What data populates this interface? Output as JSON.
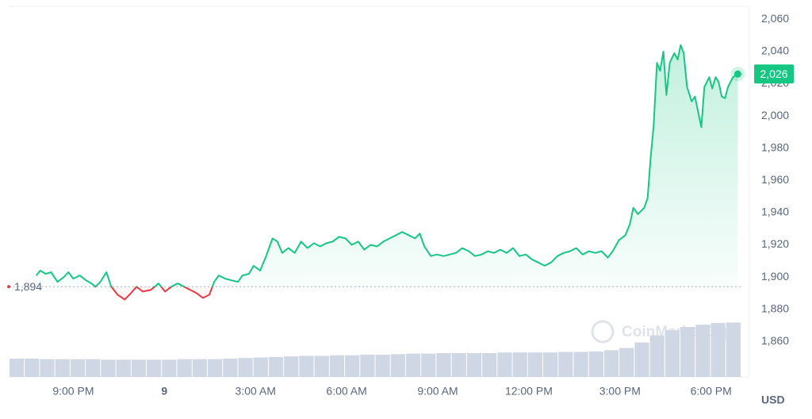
{
  "chart_data": {
    "type": "line",
    "currency": "USD",
    "watermark": "CoinMarketCap",
    "up_color": "#16c784",
    "down_color": "#ea3943",
    "baseline": {
      "value": 1894,
      "label": "1,894"
    },
    "current_price": {
      "value": 2026,
      "label": "2,026"
    },
    "xlim": [
      -2.1,
      22
    ],
    "xticks": [
      {
        "value": 0,
        "label": "9:00 PM"
      },
      {
        "value": 3,
        "label": "9"
      },
      {
        "value": 6,
        "label": "3:00 AM"
      },
      {
        "value": 9,
        "label": "6:00 AM"
      },
      {
        "value": 12,
        "label": "9:00 AM"
      },
      {
        "value": 15,
        "label": "12:00 PM"
      },
      {
        "value": 18,
        "label": "3:00 PM"
      },
      {
        "value": 21,
        "label": "6:00 PM"
      }
    ],
    "ylim": [
      1838,
      2068
    ],
    "yticks": [
      {
        "value": 1860,
        "label": "1,860"
      },
      {
        "value": 1880,
        "label": "1,880"
      },
      {
        "value": 1900,
        "label": "1,900"
      },
      {
        "value": 1920,
        "label": "1,920"
      },
      {
        "value": 1940,
        "label": "1,940"
      },
      {
        "value": 1960,
        "label": "1,960"
      },
      {
        "value": 1980,
        "label": "1,980"
      },
      {
        "value": 2000,
        "label": "2,000"
      },
      {
        "value": 2020,
        "label": "2,020"
      },
      {
        "value": 2040,
        "label": "2,040"
      },
      {
        "value": 2060,
        "label": "2,060"
      }
    ],
    "grid": false,
    "x": [
      -1.22,
      -1.09,
      -0.91,
      -0.73,
      -0.52,
      -0.31,
      -0.16,
      0,
      0.21,
      0.42,
      0.6,
      0.73,
      0.89,
      1.09,
      1.25,
      1.46,
      1.69,
      1.9,
      2.08,
      2.29,
      2.55,
      2.81,
      3.02,
      3.23,
      3.44,
      3.65,
      3.85,
      4.06,
      4.27,
      4.48,
      4.64,
      4.79,
      5.0,
      5.21,
      5.42,
      5.57,
      5.78,
      5.94,
      6.15,
      6.35,
      6.56,
      6.72,
      6.88,
      7.08,
      7.29,
      7.5,
      7.71,
      7.92,
      8.13,
      8.33,
      8.54,
      8.75,
      8.96,
      9.17,
      9.38,
      9.58,
      9.79,
      10.0,
      10.21,
      10.42,
      10.63,
      10.83,
      11.04,
      11.25,
      11.41,
      11.56,
      11.77,
      11.98,
      12.19,
      12.4,
      12.6,
      12.81,
      13.02,
      13.23,
      13.44,
      13.65,
      13.85,
      14.06,
      14.27,
      14.48,
      14.69,
      14.9,
      15.1,
      15.31,
      15.52,
      15.73,
      15.94,
      16.15,
      16.35,
      16.56,
      16.77,
      16.98,
      17.19,
      17.4,
      17.6,
      17.76,
      17.97,
      18.18,
      18.33,
      18.44,
      18.59,
      18.8,
      18.91,
      19.01,
      19.11,
      19.22,
      19.32,
      19.43,
      19.53,
      19.64,
      19.79,
      19.9,
      20.0,
      20.1,
      20.21,
      20.36,
      20.47,
      20.57,
      20.68,
      20.78,
      20.94,
      21.04,
      21.15,
      21.25,
      21.35,
      21.46,
      21.56,
      21.72,
      21.88
    ],
    "series": [
      {
        "name": "Price",
        "values": [
          1901,
          1904,
          1902,
          1903,
          1897,
          1900,
          1903,
          1899,
          1901,
          1898,
          1896,
          1894,
          1897,
          1903,
          1894,
          1889,
          1886,
          1890,
          1894,
          1891,
          1892,
          1896,
          1891,
          1894,
          1896,
          1894,
          1892,
          1890,
          1887,
          1889,
          1897,
          1901,
          1899,
          1898,
          1897,
          1901,
          1902,
          1907,
          1904,
          1913,
          1924,
          1922,
          1915,
          1918,
          1915,
          1922,
          1918,
          1921,
          1919,
          1921,
          1922,
          1925,
          1924,
          1920,
          1922,
          1917,
          1920,
          1919,
          1922,
          1924,
          1926,
          1928,
          1926,
          1924,
          1927,
          1919,
          1913,
          1914,
          1913,
          1914,
          1915,
          1918,
          1916,
          1913,
          1914,
          1916,
          1915,
          1917,
          1915,
          1918,
          1913,
          1914,
          1911,
          1909,
          1907,
          1909,
          1913,
          1915,
          1916,
          1918,
          1914,
          1916,
          1915,
          1916,
          1912,
          1916,
          1923,
          1926,
          1933,
          1943,
          1939,
          1943,
          1949,
          1974,
          1994,
          2033,
          2028,
          2040,
          2013,
          2033,
          2039,
          2035,
          2044,
          2039,
          2018,
          2009,
          2012,
          2003,
          1993,
          2018,
          2024,
          2017,
          2024,
          2021,
          2012,
          2011,
          2018,
          2024,
          2026
        ]
      }
    ],
    "volume": {
      "color": "#cfd6e4",
      "ylim": [
        0,
        100
      ],
      "values": [
        33,
        33,
        32,
        32,
        32,
        32,
        31,
        31,
        31,
        31,
        31,
        32,
        32,
        32,
        33,
        34,
        35,
        36,
        37,
        38,
        38,
        39,
        39,
        40,
        40,
        41,
        42,
        42,
        43,
        43,
        43,
        43,
        44,
        44,
        44,
        44,
        45,
        45,
        46,
        48,
        52,
        62,
        75,
        84,
        90,
        94,
        97,
        98
      ]
    }
  }
}
